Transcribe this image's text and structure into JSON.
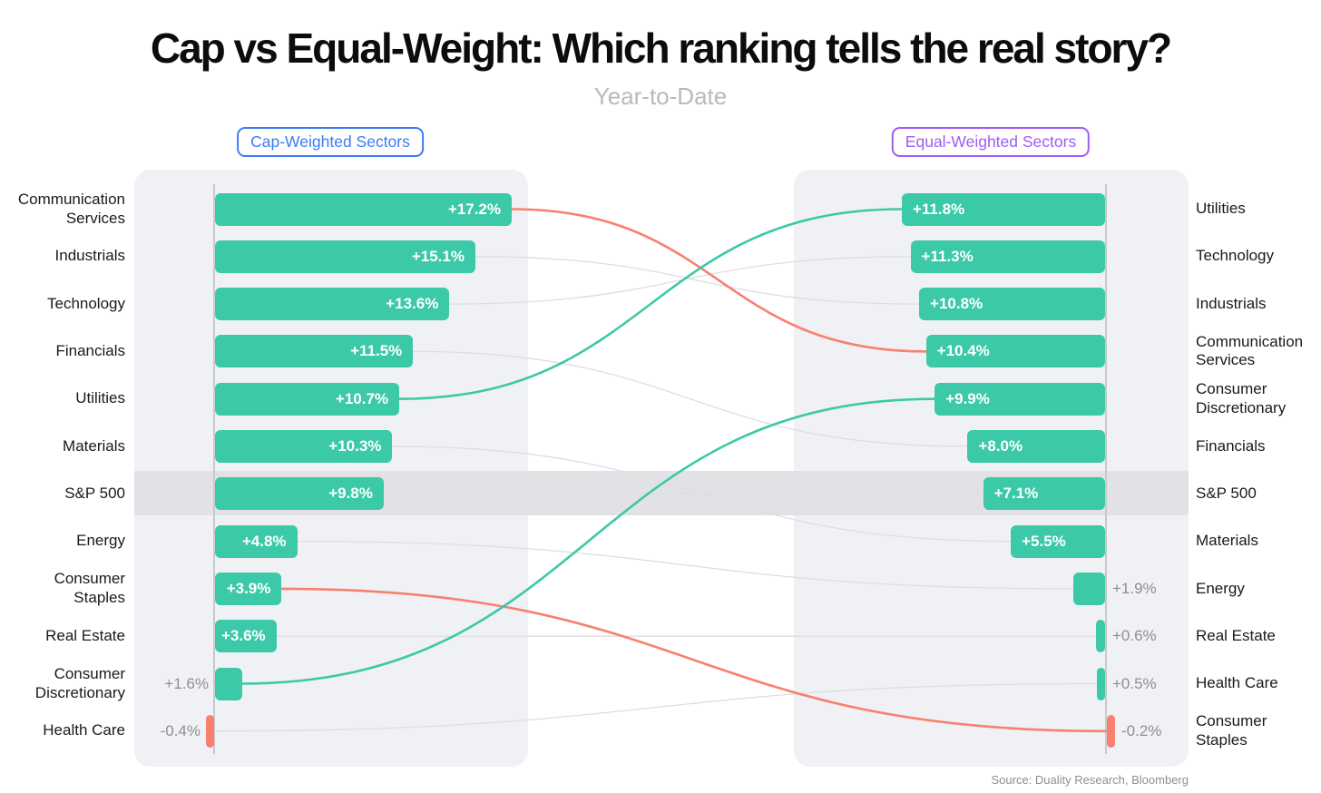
{
  "page": {
    "title": "Cap vs Equal-Weight: Which ranking tells the real story?",
    "subtitle": "Year-to-Date",
    "source": "Source: Duality Research, Bloomberg"
  },
  "legend": {
    "cap": {
      "label": "Cap-Weighted Sectors",
      "color": "#3D7BF4"
    },
    "equal": {
      "label": "Equal-Weighted Sectors",
      "color": "#9D5CF5"
    }
  },
  "colors": {
    "bar_positive": "#3BC9A7",
    "bar_negative": "#F8806F",
    "panel": "#F0F1F5",
    "benchmark_band": "#E2E2E6",
    "axis": "#C8C8CD",
    "connector_neutral": "#DEDEE2",
    "label_dark": "#1A1A1E",
    "label_gray": "#8E8E93"
  },
  "chart_data": {
    "type": "bar",
    "subtype": "dual-ranked-bars-with-slope-links",
    "unit": "%",
    "benchmark_row": "S&P 500",
    "value_axis_hidden": true,
    "left": {
      "title": "Cap-Weighted Sectors",
      "items": [
        {
          "label": "Communication Services",
          "label_display": "Communication\nServices",
          "value": 17.2,
          "display": "+17.2%",
          "label_inside": true
        },
        {
          "label": "Industrials",
          "label_display": "Industrials",
          "value": 15.1,
          "display": "+15.1%",
          "label_inside": true
        },
        {
          "label": "Technology",
          "label_display": "Technology",
          "value": 13.6,
          "display": "+13.6%",
          "label_inside": true
        },
        {
          "label": "Financials",
          "label_display": "Financials",
          "value": 11.5,
          "display": "+11.5%",
          "label_inside": true
        },
        {
          "label": "Utilities",
          "label_display": "Utilities",
          "value": 10.7,
          "display": "+10.7%",
          "label_inside": true
        },
        {
          "label": "Materials",
          "label_display": "Materials",
          "value": 10.3,
          "display": "+10.3%",
          "label_inside": true
        },
        {
          "label": "S&P 500",
          "label_display": "S&P 500",
          "value": 9.8,
          "display": "+9.8%",
          "label_inside": true,
          "benchmark": true
        },
        {
          "label": "Energy",
          "label_display": "Energy",
          "value": 4.8,
          "display": "+4.8%",
          "label_inside": true
        },
        {
          "label": "Consumer Staples",
          "label_display": "Consumer\nStaples",
          "value": 3.9,
          "display": "+3.9%",
          "label_inside": true
        },
        {
          "label": "Real Estate",
          "label_display": "Real Estate",
          "value": 3.6,
          "display": "+3.6%",
          "label_inside": true
        },
        {
          "label": "Consumer Discretionary",
          "label_display": "Consumer\nDiscretionary",
          "value": 1.6,
          "display": "+1.6%",
          "label_inside": false
        },
        {
          "label": "Health Care",
          "label_display": "Health Care",
          "value": -0.4,
          "display": "-0.4%",
          "label_inside": false
        }
      ]
    },
    "right": {
      "title": "Equal-Weighted Sectors",
      "items": [
        {
          "label": "Utilities",
          "label_display": "Utilities",
          "value": 11.8,
          "display": "+11.8%",
          "label_inside": true
        },
        {
          "label": "Technology",
          "label_display": "Technology",
          "value": 11.3,
          "display": "+11.3%",
          "label_inside": true
        },
        {
          "label": "Industrials",
          "label_display": "Industrials",
          "value": 10.8,
          "display": "+10.8%",
          "label_inside": true
        },
        {
          "label": "Communication Services",
          "label_display": "Communication\nServices",
          "value": 10.4,
          "display": "+10.4%",
          "label_inside": true
        },
        {
          "label": "Consumer Discretionary",
          "label_display": "Consumer\nDiscretionary",
          "value": 9.9,
          "display": "+9.9%",
          "label_inside": true
        },
        {
          "label": "Financials",
          "label_display": "Financials",
          "value": 8.0,
          "display": "+8.0%",
          "label_inside": true
        },
        {
          "label": "S&P 500",
          "label_display": "S&P 500",
          "value": 7.1,
          "display": "+7.1%",
          "label_inside": true,
          "benchmark": true
        },
        {
          "label": "Materials",
          "label_display": "Materials",
          "value": 5.5,
          "display": "+5.5%",
          "label_inside": true
        },
        {
          "label": "Energy",
          "label_display": "Energy",
          "value": 1.9,
          "display": "+1.9%",
          "label_inside": false
        },
        {
          "label": "Real Estate",
          "label_display": "Real Estate",
          "value": 0.6,
          "display": "+0.6%",
          "label_inside": false
        },
        {
          "label": "Health Care",
          "label_display": "Health Care",
          "value": 0.5,
          "display": "+0.5%",
          "label_inside": false
        },
        {
          "label": "Consumer Staples",
          "label_display": "Consumer\nStaples",
          "value": -0.2,
          "display": "-0.2%",
          "label_inside": false
        }
      ]
    },
    "links": [
      {
        "sector": "Communication Services",
        "from_rank": 1,
        "to_rank": 4,
        "highlight": "down"
      },
      {
        "sector": "Industrials",
        "from_rank": 2,
        "to_rank": 3,
        "highlight": "neutral"
      },
      {
        "sector": "Technology",
        "from_rank": 3,
        "to_rank": 2,
        "highlight": "neutral"
      },
      {
        "sector": "Financials",
        "from_rank": 4,
        "to_rank": 6,
        "highlight": "neutral"
      },
      {
        "sector": "Utilities",
        "from_rank": 5,
        "to_rank": 1,
        "highlight": "up"
      },
      {
        "sector": "Materials",
        "from_rank": 6,
        "to_rank": 8,
        "highlight": "neutral"
      },
      {
        "sector": "S&P 500",
        "from_rank": 7,
        "to_rank": 7,
        "highlight": "neutral"
      },
      {
        "sector": "Energy",
        "from_rank": 8,
        "to_rank": 9,
        "highlight": "neutral"
      },
      {
        "sector": "Consumer Staples",
        "from_rank": 9,
        "to_rank": 12,
        "highlight": "down"
      },
      {
        "sector": "Real Estate",
        "from_rank": 10,
        "to_rank": 10,
        "highlight": "neutral"
      },
      {
        "sector": "Consumer Discretionary",
        "from_rank": 11,
        "to_rank": 5,
        "highlight": "up"
      },
      {
        "sector": "Health Care",
        "from_rank": 12,
        "to_rank": 11,
        "highlight": "neutral"
      }
    ],
    "highlight_colors": {
      "up": "#3BC9A7",
      "down": "#F8806F",
      "neutral": "#DEDEE2"
    }
  }
}
